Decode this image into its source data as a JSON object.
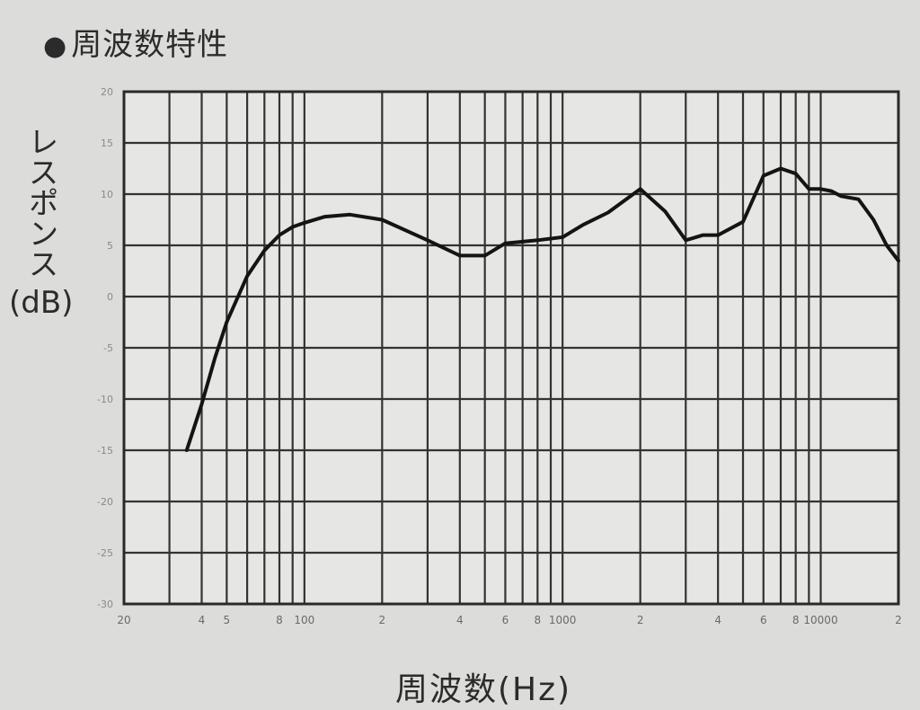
{
  "title": "周波数特性",
  "chart_data": {
    "type": "line",
    "title": "周波数特性",
    "xlabel": "周波数(Hz)",
    "ylabel": "レスポンス",
    "ylabel_unit": "(dB)",
    "x_scale": "log",
    "xlim": [
      20,
      20000
    ],
    "ylim": [
      -30,
      20
    ],
    "grid": true,
    "y_ticks": [
      20,
      15,
      10,
      5,
      0,
      -5,
      -10,
      -15,
      -20,
      -25,
      -30
    ],
    "y_tick_labels": [
      "20",
      "15",
      "10",
      "5",
      "0",
      "-5",
      "-10",
      "-15",
      "-20",
      "-25",
      "-30"
    ],
    "x_grid": [
      20,
      30,
      40,
      50,
      60,
      70,
      80,
      90,
      100,
      200,
      300,
      400,
      500,
      600,
      700,
      800,
      900,
      1000,
      2000,
      3000,
      4000,
      5000,
      6000,
      7000,
      8000,
      9000,
      10000,
      20000
    ],
    "x_ticks": [
      {
        "value": 20,
        "label": "20"
      },
      {
        "value": 40,
        "label": "4"
      },
      {
        "value": 50,
        "label": "5"
      },
      {
        "value": 80,
        "label": "8"
      },
      {
        "value": 100,
        "label": "100"
      },
      {
        "value": 200,
        "label": "2"
      },
      {
        "value": 400,
        "label": "4"
      },
      {
        "value": 600,
        "label": "6"
      },
      {
        "value": 800,
        "label": "8"
      },
      {
        "value": 1000,
        "label": "1000"
      },
      {
        "value": 2000,
        "label": "2"
      },
      {
        "value": 4000,
        "label": "4"
      },
      {
        "value": 6000,
        "label": "6"
      },
      {
        "value": 8000,
        "label": "8"
      },
      {
        "value": 10000,
        "label": "10000"
      },
      {
        "value": 20000,
        "label": "2"
      }
    ],
    "series": [
      {
        "x": [
          35,
          40,
          45,
          50,
          60,
          70,
          80,
          90,
          100,
          120,
          150,
          200,
          300,
          400,
          500,
          600,
          800,
          1000,
          1200,
          1500,
          2000,
          2500,
          3000,
          3500,
          4000,
          5000,
          6000,
          7000,
          8000,
          9000,
          10000,
          11000,
          12000,
          14000,
          16000,
          18000,
          20000
        ],
        "y": [
          -15,
          -10.5,
          -6,
          -2.5,
          2,
          4.5,
          6,
          6.8,
          7.2,
          7.8,
          8,
          7.5,
          5.5,
          4,
          4,
          5.2,
          5.5,
          5.8,
          7,
          8.2,
          10.5,
          8.3,
          5.5,
          6,
          6,
          7.3,
          11.8,
          12.5,
          12,
          10.5,
          10.5,
          10.3,
          9.8,
          9.5,
          7.5,
          5,
          3.5
        ]
      }
    ]
  }
}
